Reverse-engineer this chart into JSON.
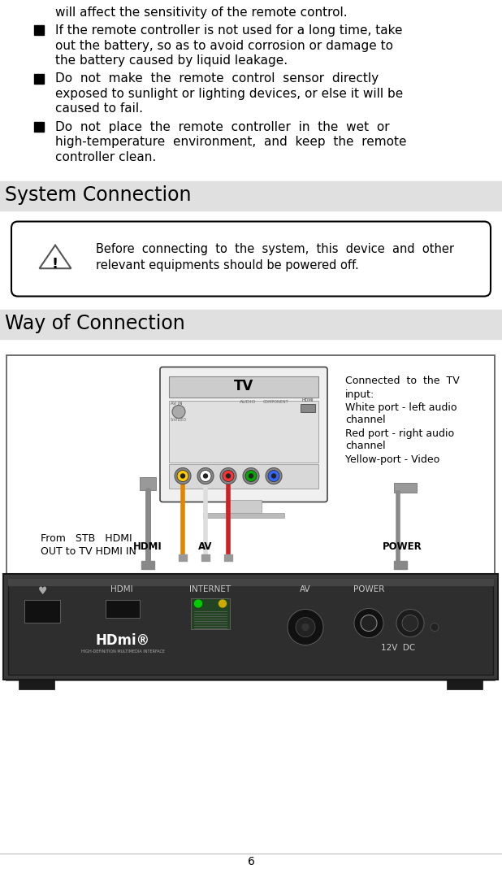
{
  "page_number": "6",
  "bg_color": "#ffffff",
  "section_header_bg": "#e0e0e0",
  "bullet_line0": "will affect the sensitivity of the remote control.",
  "bullet1_lines": [
    "If the remote controller is not used for a long time, take",
    "out the battery, so as to avoid corrosion or damage to",
    "the battery caused by liquid leakage."
  ],
  "bullet2_lines": [
    "Do  not  make  the  remote  control  sensor  directly",
    "exposed to sunlight or lighting devices, or else it will be",
    "caused to fail."
  ],
  "bullet3_lines": [
    "Do  not  place  the  remote  controller  in  the  wet  or",
    "high-temperature  environment,  and  keep  the  remote",
    "controller clean."
  ],
  "section1_title": "System Connection",
  "warn_line1": "Before  connecting  to  the  system,  this  device  and  other",
  "warn_line2": "relevant equipments should be powered off.",
  "section2_title": "Way of Connection",
  "tv_label": "TV",
  "note_lines": [
    "Connected  to  the  TV",
    "input:",
    "White port - left audio",
    "channel",
    "Red port - right audio",
    "channel",
    "Yellow-port - Video"
  ],
  "stb_label": "From   STB   HDMI\nOUT to TV HDMI IN",
  "hdmi_port_label": "HDMI",
  "av_port_label": "AV",
  "power_port_label": "POWER",
  "back_labels": [
    "HDMI",
    "INTERNET",
    "AV",
    "POWER"
  ],
  "dc_label": "12V  DC",
  "usb_char": "♥"
}
